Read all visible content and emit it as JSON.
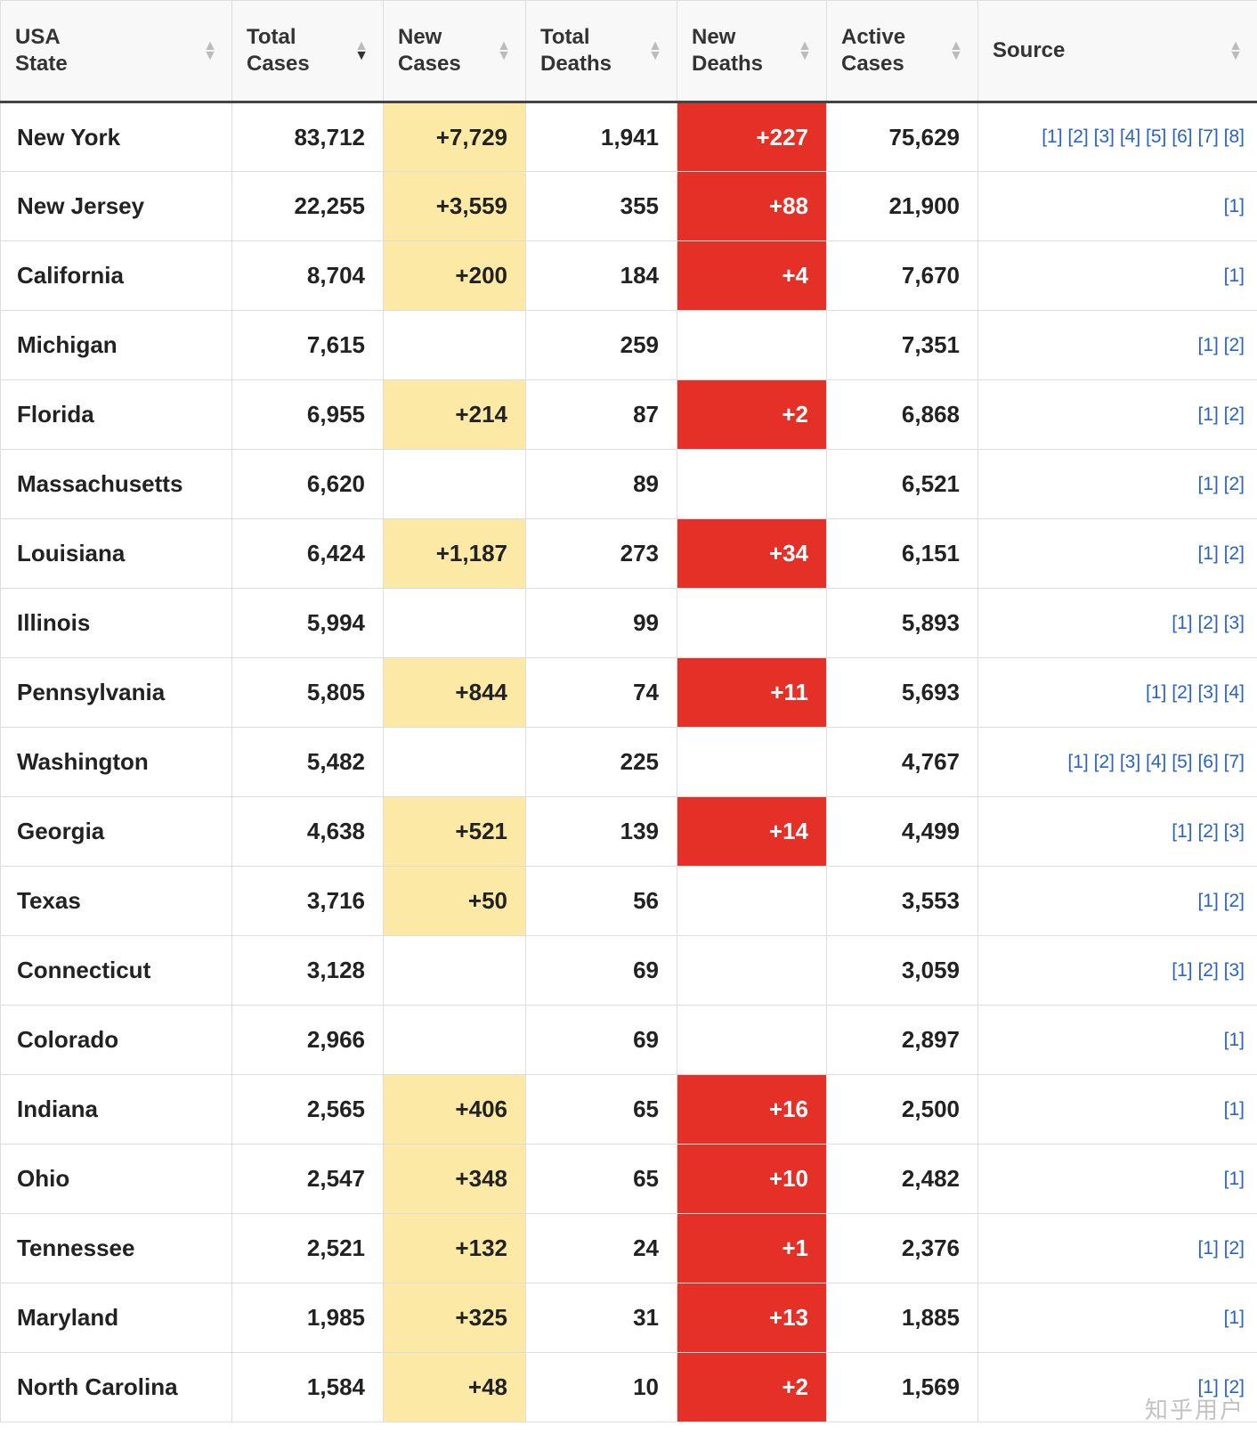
{
  "table": {
    "columns": [
      {
        "key": "state",
        "label": "USA\nState",
        "sort": "none"
      },
      {
        "key": "total_cases",
        "label": "Total\nCases",
        "sort": "desc"
      },
      {
        "key": "new_cases",
        "label": "New\nCases",
        "sort": "none"
      },
      {
        "key": "total_deaths",
        "label": "Total\nDeaths",
        "sort": "none"
      },
      {
        "key": "new_deaths",
        "label": "New\nDeaths",
        "sort": "none"
      },
      {
        "key": "active_cases",
        "label": "Active\nCases",
        "sort": "none"
      },
      {
        "key": "source",
        "label": "Source",
        "sort": "none"
      }
    ],
    "colors": {
      "header_bg": "#f8f8f8",
      "border": "#dddddd",
      "header_border_bottom": "#444444",
      "new_cases_bg": "#fce9a6",
      "new_deaths_bg": "#e53027",
      "new_deaths_text": "#ffffff",
      "link": "#2962c9",
      "text": "#222222"
    },
    "fontsize_header": 24,
    "fontsize_cell": 26,
    "fontsize_source": 21,
    "rows": [
      {
        "state": "New York",
        "total_cases": "83,712",
        "new_cases": "+7,729",
        "total_deaths": "1,941",
        "new_deaths": "+227",
        "active_cases": "75,629",
        "sources": 8
      },
      {
        "state": "New Jersey",
        "total_cases": "22,255",
        "new_cases": "+3,559",
        "total_deaths": "355",
        "new_deaths": "+88",
        "active_cases": "21,900",
        "sources": 1
      },
      {
        "state": "California",
        "total_cases": "8,704",
        "new_cases": "+200",
        "total_deaths": "184",
        "new_deaths": "+4",
        "active_cases": "7,670",
        "sources": 1
      },
      {
        "state": "Michigan",
        "total_cases": "7,615",
        "new_cases": "",
        "total_deaths": "259",
        "new_deaths": "",
        "active_cases": "7,351",
        "sources": 2
      },
      {
        "state": "Florida",
        "total_cases": "6,955",
        "new_cases": "+214",
        "total_deaths": "87",
        "new_deaths": "+2",
        "active_cases": "6,868",
        "sources": 2
      },
      {
        "state": "Massachusetts",
        "total_cases": "6,620",
        "new_cases": "",
        "total_deaths": "89",
        "new_deaths": "",
        "active_cases": "6,521",
        "sources": 2
      },
      {
        "state": "Louisiana",
        "total_cases": "6,424",
        "new_cases": "+1,187",
        "total_deaths": "273",
        "new_deaths": "+34",
        "active_cases": "6,151",
        "sources": 2
      },
      {
        "state": "Illinois",
        "total_cases": "5,994",
        "new_cases": "",
        "total_deaths": "99",
        "new_deaths": "",
        "active_cases": "5,893",
        "sources": 3
      },
      {
        "state": "Pennsylvania",
        "total_cases": "5,805",
        "new_cases": "+844",
        "total_deaths": "74",
        "new_deaths": "+11",
        "active_cases": "5,693",
        "sources": 4
      },
      {
        "state": "Washington",
        "total_cases": "5,482",
        "new_cases": "",
        "total_deaths": "225",
        "new_deaths": "",
        "active_cases": "4,767",
        "sources": 7
      },
      {
        "state": "Georgia",
        "total_cases": "4,638",
        "new_cases": "+521",
        "total_deaths": "139",
        "new_deaths": "+14",
        "active_cases": "4,499",
        "sources": 3
      },
      {
        "state": "Texas",
        "total_cases": "3,716",
        "new_cases": "+50",
        "total_deaths": "56",
        "new_deaths": "",
        "active_cases": "3,553",
        "sources": 2
      },
      {
        "state": "Connecticut",
        "total_cases": "3,128",
        "new_cases": "",
        "total_deaths": "69",
        "new_deaths": "",
        "active_cases": "3,059",
        "sources": 3
      },
      {
        "state": "Colorado",
        "total_cases": "2,966",
        "new_cases": "",
        "total_deaths": "69",
        "new_deaths": "",
        "active_cases": "2,897",
        "sources": 1
      },
      {
        "state": "Indiana",
        "total_cases": "2,565",
        "new_cases": "+406",
        "total_deaths": "65",
        "new_deaths": "+16",
        "active_cases": "2,500",
        "sources": 1
      },
      {
        "state": "Ohio",
        "total_cases": "2,547",
        "new_cases": "+348",
        "total_deaths": "65",
        "new_deaths": "+10",
        "active_cases": "2,482",
        "sources": 1
      },
      {
        "state": "Tennessee",
        "total_cases": "2,521",
        "new_cases": "+132",
        "total_deaths": "24",
        "new_deaths": "+1",
        "active_cases": "2,376",
        "sources": 2
      },
      {
        "state": "Maryland",
        "total_cases": "1,985",
        "new_cases": "+325",
        "total_deaths": "31",
        "new_deaths": "+13",
        "active_cases": "1,885",
        "sources": 1
      },
      {
        "state": "North Carolina",
        "total_cases": "1,584",
        "new_cases": "+48",
        "total_deaths": "10",
        "new_deaths": "+2",
        "active_cases": "1,569",
        "sources": 2
      }
    ]
  },
  "watermark": "知乎用户"
}
